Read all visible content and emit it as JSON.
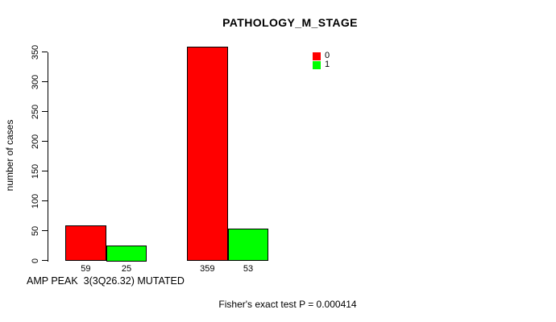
{
  "chart_data": {
    "type": "bar",
    "title": "PATHOLOGY_M_STAGE",
    "ylabel": "number of cases",
    "xlabel": "AMP PEAK  3(3Q26.32) MUTATED",
    "footer_note": "Fisher's exact test P = 0.000414",
    "ylim": [
      0,
      350
    ],
    "yticks": [
      0,
      50,
      100,
      150,
      200,
      250,
      300,
      350
    ],
    "grid": false,
    "bar_border_color": "#000000",
    "series": [
      {
        "name": "0",
        "color": "#ff0000",
        "values": [
          59,
          359
        ]
      },
      {
        "name": "1",
        "color": "#00ff00",
        "values": [
          25,
          53
        ]
      }
    ],
    "bar_value_labels": [
      "59",
      "25",
      "359",
      "53"
    ],
    "legend": {
      "position": "inside-top-right",
      "entries": [
        {
          "label": "0",
          "color": "#ff0000"
        },
        {
          "label": "1",
          "color": "#00ff00"
        }
      ]
    }
  }
}
